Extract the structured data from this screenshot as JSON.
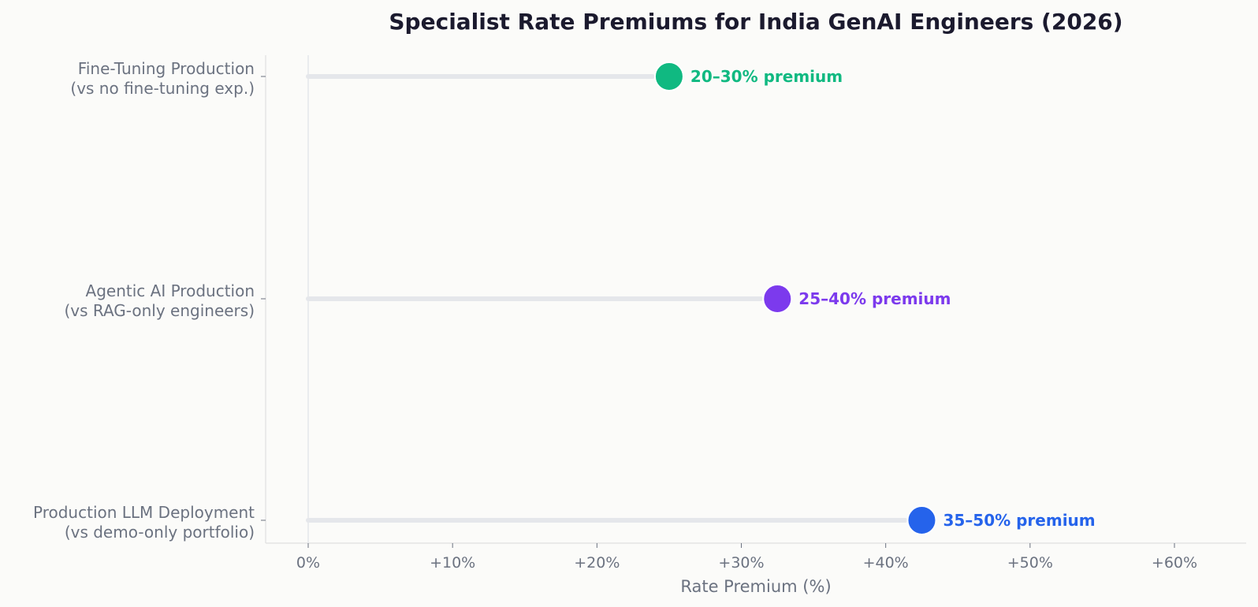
{
  "chart_data": {
    "type": "lollipop",
    "title": "Specialist Rate Premiums for India GenAI Engineers (2026)",
    "xlabel": "Rate Premium (%)",
    "ylabel": "",
    "xlim": [
      -3,
      65
    ],
    "x_ticks": [
      0,
      10,
      20,
      30,
      40,
      50,
      60
    ],
    "x_tick_labels": [
      "0%",
      "+10%",
      "+20%",
      "+30%",
      "+40%",
      "+50%",
      "+60%"
    ],
    "grid": false,
    "categories": [
      {
        "label_line1": "Fine-Tuning Production",
        "label_line2": "(vs no fine-tuning exp.)",
        "value": 25,
        "annotation": "20–30% premium",
        "color": "#10b981"
      },
      {
        "label_line1": "Agentic AI Production",
        "label_line2": "(vs RAG-only engineers)",
        "value": 32.5,
        "annotation": "25–40% premium",
        "color": "#7c3aed"
      },
      {
        "label_line1": "Production LLM Deployment",
        "label_line2": "(vs demo-only portfolio)",
        "value": 42.5,
        "annotation": "35–50% premium",
        "color": "#2563eb"
      }
    ],
    "stem_color": "#e5e7eb",
    "axis_color": "#e0e0e0"
  }
}
